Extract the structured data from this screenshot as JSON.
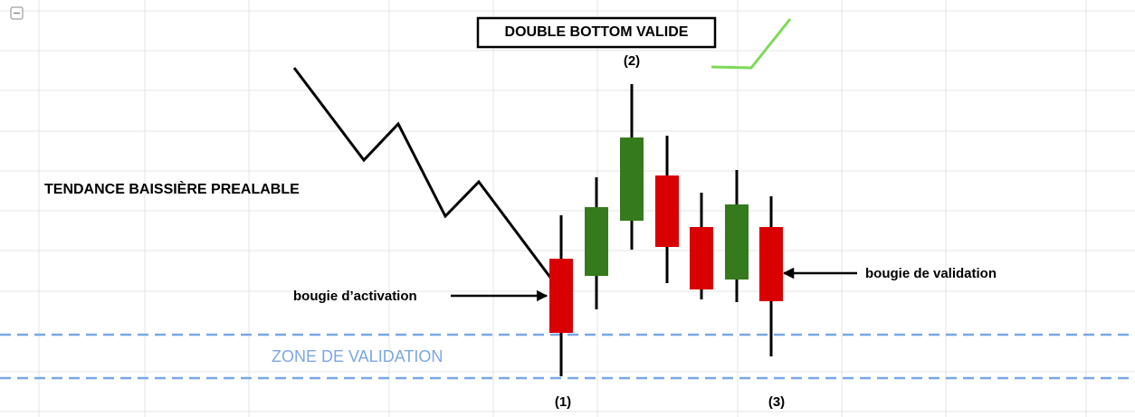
{
  "title": "DOUBLE BOTTOM VALIDE",
  "labels": {
    "point_2": "(2)",
    "point_1": "(1)",
    "point_3": "(3)",
    "trend": "TENDANCE BAISSIÈRE PREALABLE",
    "activation": "bougie d’activation",
    "validation": "bougie de validation",
    "zone": "ZONE DE VALIDATION"
  }
}
